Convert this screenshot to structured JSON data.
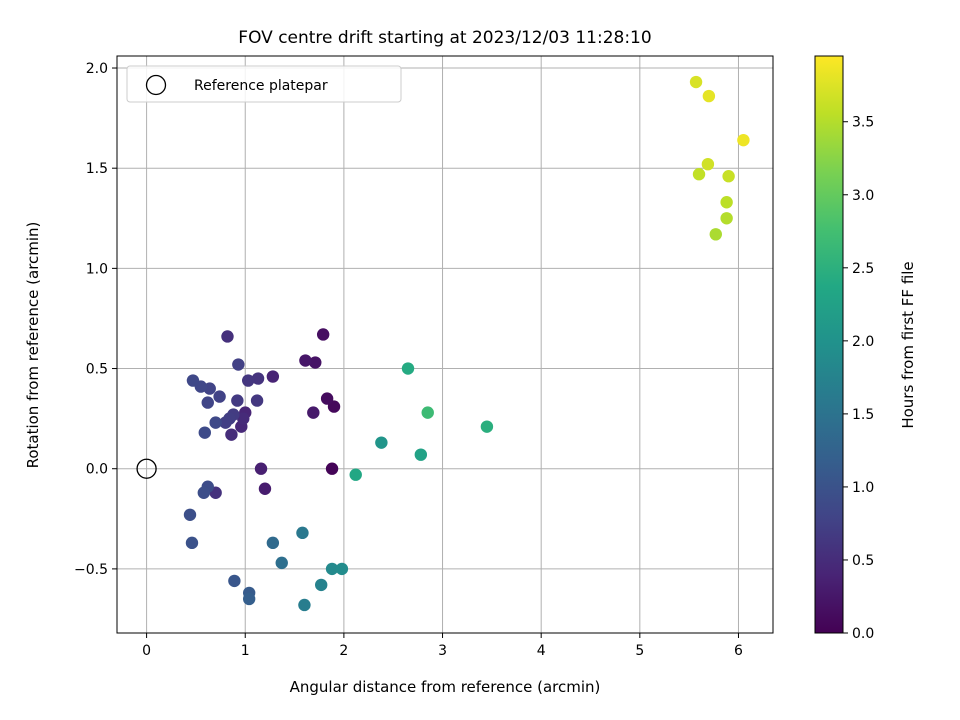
{
  "chart_data": {
    "type": "scatter",
    "title": "FOV centre drift starting at 2023/12/03 11:28:10",
    "xlabel": "Angular distance from reference (arcmin)",
    "ylabel": "Rotation from reference (arcmin)",
    "colorbar_label": "Hours from first FF file",
    "xlim": [
      -0.3,
      6.35
    ],
    "ylim": [
      -0.82,
      2.06
    ],
    "xticks": [
      0,
      1,
      2,
      3,
      4,
      5,
      6
    ],
    "yticks": [
      -0.5,
      0.0,
      0.5,
      1.0,
      1.5,
      2.0
    ],
    "colorbar_range": [
      0.0,
      3.95
    ],
    "colorbar_ticks": [
      0.0,
      0.5,
      1.0,
      1.5,
      2.0,
      2.5,
      3.0,
      3.5
    ],
    "colormap": "viridis",
    "grid": true,
    "legend": {
      "placement": "top-left",
      "entries": [
        {
          "label": "Reference platepar",
          "marker": "open-circle"
        }
      ]
    },
    "reference_point": {
      "x": 0,
      "y": 0
    },
    "points": [
      {
        "x": 1.88,
        "y": 0.0,
        "c": 0.03
      },
      {
        "x": 1.9,
        "y": 0.31,
        "c": 0.08
      },
      {
        "x": 1.83,
        "y": 0.35,
        "c": 0.12
      },
      {
        "x": 1.79,
        "y": 0.67,
        "c": 0.16
      },
      {
        "x": 1.71,
        "y": 0.53,
        "c": 0.2
      },
      {
        "x": 1.61,
        "y": 0.54,
        "c": 0.24
      },
      {
        "x": 1.69,
        "y": 0.28,
        "c": 0.28
      },
      {
        "x": 1.2,
        "y": -0.1,
        "c": 0.31
      },
      {
        "x": 1.16,
        "y": 0.0,
        "c": 0.35
      },
      {
        "x": 1.28,
        "y": 0.46,
        "c": 0.39
      },
      {
        "x": 1.0,
        "y": 0.28,
        "c": 0.42
      },
      {
        "x": 0.96,
        "y": 0.21,
        "c": 0.45
      },
      {
        "x": 0.98,
        "y": 0.25,
        "c": 0.48
      },
      {
        "x": 0.86,
        "y": 0.17,
        "c": 0.51
      },
      {
        "x": 0.82,
        "y": 0.66,
        "c": 0.54
      },
      {
        "x": 0.7,
        "y": -0.12,
        "c": 0.57
      },
      {
        "x": 1.13,
        "y": 0.45,
        "c": 0.59
      },
      {
        "x": 1.03,
        "y": 0.44,
        "c": 0.62
      },
      {
        "x": 1.12,
        "y": 0.34,
        "c": 0.64
      },
      {
        "x": 0.92,
        "y": 0.34,
        "c": 0.67
      },
      {
        "x": 0.88,
        "y": 0.27,
        "c": 0.69
      },
      {
        "x": 0.84,
        "y": 0.25,
        "c": 0.71
      },
      {
        "x": 0.8,
        "y": 0.23,
        "c": 0.73
      },
      {
        "x": 0.93,
        "y": 0.52,
        "c": 0.75
      },
      {
        "x": 0.74,
        "y": 0.36,
        "c": 0.77
      },
      {
        "x": 0.64,
        "y": 0.4,
        "c": 0.79
      },
      {
        "x": 0.62,
        "y": 0.33,
        "c": 0.81
      },
      {
        "x": 0.55,
        "y": 0.41,
        "c": 0.83
      },
      {
        "x": 0.47,
        "y": 0.44,
        "c": 0.85
      },
      {
        "x": 0.7,
        "y": 0.23,
        "c": 0.87
      },
      {
        "x": 0.59,
        "y": 0.18,
        "c": 0.89
      },
      {
        "x": 0.62,
        "y": -0.09,
        "c": 0.91
      },
      {
        "x": 0.58,
        "y": -0.12,
        "c": 0.93
      },
      {
        "x": 0.44,
        "y": -0.23,
        "c": 0.95
      },
      {
        "x": 0.46,
        "y": -0.37,
        "c": 1.0
      },
      {
        "x": 0.89,
        "y": -0.56,
        "c": 1.05
      },
      {
        "x": 1.04,
        "y": -0.62,
        "c": 1.12
      },
      {
        "x": 1.04,
        "y": -0.65,
        "c": 1.18
      },
      {
        "x": 1.28,
        "y": -0.37,
        "c": 1.36
      },
      {
        "x": 1.37,
        "y": -0.47,
        "c": 1.44
      },
      {
        "x": 1.58,
        "y": -0.32,
        "c": 1.58
      },
      {
        "x": 1.6,
        "y": -0.68,
        "c": 1.66
      },
      {
        "x": 1.77,
        "y": -0.58,
        "c": 1.74
      },
      {
        "x": 1.88,
        "y": -0.5,
        "c": 1.86
      },
      {
        "x": 1.98,
        "y": -0.5,
        "c": 1.9
      },
      {
        "x": 2.38,
        "y": 0.13,
        "c": 2.05
      },
      {
        "x": 2.12,
        "y": -0.03,
        "c": 2.35
      },
      {
        "x": 2.78,
        "y": 0.07,
        "c": 2.27
      },
      {
        "x": 2.65,
        "y": 0.5,
        "c": 2.4
      },
      {
        "x": 3.45,
        "y": 0.21,
        "c": 2.48
      },
      {
        "x": 2.85,
        "y": 0.28,
        "c": 2.68
      },
      {
        "x": 5.77,
        "y": 1.17,
        "c": 3.45
      },
      {
        "x": 5.88,
        "y": 1.25,
        "c": 3.5
      },
      {
        "x": 5.88,
        "y": 1.33,
        "c": 3.55
      },
      {
        "x": 5.9,
        "y": 1.46,
        "c": 3.62
      },
      {
        "x": 5.6,
        "y": 1.47,
        "c": 3.58
      },
      {
        "x": 5.69,
        "y": 1.52,
        "c": 3.67
      },
      {
        "x": 6.05,
        "y": 1.64,
        "c": 3.86
      },
      {
        "x": 5.7,
        "y": 1.86,
        "c": 3.8
      },
      {
        "x": 5.57,
        "y": 1.93,
        "c": 3.72
      }
    ]
  }
}
